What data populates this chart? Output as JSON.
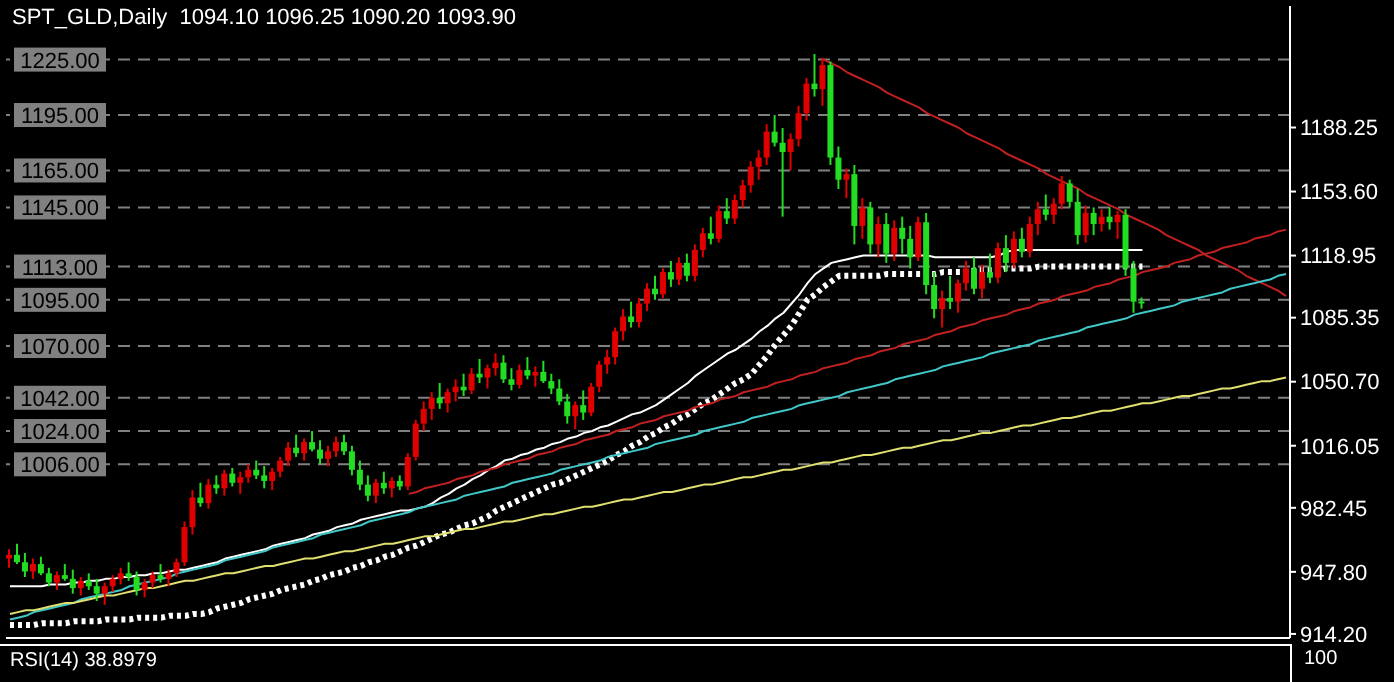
{
  "chart_data": {
    "type": "candlestick",
    "title": "SPT_GLD,Daily  1094.10 1096.25 1090.20 1093.90",
    "annotations": [
      "RSI(14) 38.8979",
      "100"
    ],
    "colors": [
      "#e00000",
      "#22dd22",
      "#22dd22",
      "#e00000",
      "#22dd22",
      "#22dd22",
      "#e00000",
      "#22dd22",
      "#22dd22",
      "#e00000",
      "#22dd22",
      "#22dd22",
      "#e00000",
      "#e00000",
      "#e00000",
      "#22dd22",
      "#22dd22",
      "#e00000",
      "#e00000",
      "#22dd22",
      "#e00000",
      "#e00000",
      "#e00000",
      "#e00000",
      "#22dd22",
      "#e00000",
      "#22dd22",
      "#e00000",
      "#22dd22",
      "#e00000",
      "#e00000",
      "#22dd22",
      "#22dd22",
      "#e00000",
      "#e00000",
      "#e00000",
      "#22dd22",
      "#e00000",
      "#22dd22",
      "#22dd22",
      "#e00000",
      "#e00000",
      "#22dd22",
      "#22dd22",
      "#22dd22",
      "#22dd22",
      "#e00000",
      "#22dd22",
      "#e00000",
      "#22dd22",
      "#e00000",
      "#e00000",
      "#e00000",
      "#e00000",
      "#22dd22",
      "#e00000",
      "#e00000",
      "#22dd22",
      "#e00000",
      "#22dd22",
      "#e00000",
      "#e00000",
      "#22dd22",
      "#22dd22",
      "#e00000",
      "#22dd22",
      "#e00000",
      "#22dd22",
      "#22dd22",
      "#22dd22",
      "#22dd22",
      "#e00000",
      "#22dd22",
      "#e00000",
      "#e00000",
      "#e00000",
      "#e00000",
      "#e00000",
      "#22dd22",
      "#e00000",
      "#e00000",
      "#22dd22",
      "#e00000",
      "#22dd22",
      "#e00000",
      "#22dd22",
      "#e00000",
      "#e00000",
      "#22dd22",
      "#e00000",
      "#22dd22",
      "#e00000",
      "#e00000",
      "#e00000",
      "#e00000",
      "#e00000",
      "#22dd22",
      "#22dd22",
      "#e00000",
      "#e00000",
      "#e00000",
      "#22dd22",
      "#e00000",
      "#22dd22",
      "#22dd22",
      "#e00000",
      "#22dd22",
      "#e00000",
      "#22dd22",
      "#e00000",
      "#22dd22",
      "#e00000",
      "#22dd22",
      "#22dd22",
      "#e00000",
      "#22dd22",
      "#22dd22",
      "#e00000",
      "#22dd22",
      "#e00000",
      "#e00000",
      "#22dd22",
      "#e00000",
      "#22dd22",
      "#e00000",
      "#22dd22",
      "#e00000",
      "#22dd22",
      "#e00000",
      "#e00000",
      "#22dd22",
      "#e00000",
      "#e00000",
      "#22dd22",
      "#22dd22",
      "#e00000",
      "#22dd22",
      "#e00000",
      "#22dd22",
      "#e00000",
      "#22dd22",
      "#22dd22",
      "#22dd22",
      null,
      null,
      null,
      null,
      null,
      null,
      null,
      null,
      null,
      null,
      null,
      null,
      null,
      null,
      null,
      null,
      null,
      null
    ],
    "categories": [
      null,
      null,
      null,
      null,
      null,
      null,
      null,
      null,
      null,
      null,
      null,
      null,
      null,
      null,
      null,
      null,
      null,
      null,
      null,
      null,
      null,
      null,
      null,
      null,
      null,
      null,
      null,
      null,
      null,
      null,
      null,
      null,
      null,
      null,
      null,
      null,
      null,
      null,
      null,
      null,
      null,
      null,
      null,
      null,
      null,
      null,
      null,
      null,
      null,
      null,
      null,
      null,
      null,
      null,
      null,
      null,
      null,
      null,
      null,
      null,
      null,
      null,
      null,
      null,
      null,
      null,
      null,
      null,
      null,
      null,
      null,
      null,
      null,
      null,
      null,
      null,
      null,
      null,
      null,
      null,
      null,
      null,
      null,
      null,
      null,
      null,
      null,
      null,
      null,
      null,
      null,
      null,
      null,
      null,
      null,
      null,
      null,
      null,
      null,
      null,
      null,
      null,
      null,
      null,
      null,
      null,
      null,
      null,
      null,
      null,
      null,
      null,
      null,
      null,
      null,
      null,
      null,
      null,
      null,
      null,
      null,
      null,
      null,
      null,
      null,
      null,
      null,
      null,
      null,
      null,
      null,
      null,
      null,
      null,
      null,
      null,
      null,
      null,
      null,
      null,
      null,
      null,
      null,
      null,
      null,
      null,
      null,
      null,
      null,
      null,
      null,
      null,
      null,
      null,
      null,
      null,
      null,
      null,
      null,
      null,
      null
    ],
    "ohlc": [
      [
        955,
        960,
        950,
        957
      ],
      [
        957,
        963,
        952,
        953
      ],
      [
        953,
        958,
        945,
        948
      ],
      [
        948,
        955,
        944,
        952
      ],
      [
        952,
        956,
        946,
        947
      ],
      [
        947,
        950,
        940,
        942
      ],
      [
        942,
        948,
        938,
        946
      ],
      [
        946,
        952,
        943,
        944
      ],
      [
        944,
        949,
        936,
        939
      ],
      [
        939,
        945,
        935,
        943
      ],
      [
        943,
        947,
        938,
        940
      ],
      [
        940,
        944,
        932,
        936
      ],
      [
        936,
        942,
        930,
        940
      ],
      [
        940,
        946,
        937,
        944
      ],
      [
        944,
        950,
        941,
        947
      ],
      [
        947,
        953,
        943,
        945
      ],
      [
        945,
        948,
        935,
        938
      ],
      [
        938,
        944,
        934,
        942
      ],
      [
        942,
        948,
        939,
        946
      ],
      [
        946,
        952,
        942,
        944
      ],
      [
        944,
        949,
        940,
        947
      ],
      [
        947,
        955,
        945,
        953
      ],
      [
        953,
        975,
        951,
        972
      ],
      [
        972,
        992,
        968,
        988
      ],
      [
        988,
        996,
        983,
        985
      ],
      [
        985,
        998,
        982,
        995
      ],
      [
        995,
        1000,
        990,
        993
      ],
      [
        993,
        1003,
        989,
        1001
      ],
      [
        1001,
        1004,
        994,
        996
      ],
      [
        996,
        1002,
        990,
        999
      ],
      [
        999,
        1006,
        996,
        1003
      ],
      [
        1003,
        1008,
        998,
        1000
      ],
      [
        1000,
        1005,
        993,
        997
      ],
      [
        997,
        1004,
        992,
        1002
      ],
      [
        1002,
        1010,
        999,
        1008
      ],
      [
        1008,
        1018,
        1005,
        1015
      ],
      [
        1015,
        1022,
        1010,
        1012
      ],
      [
        1012,
        1020,
        1008,
        1018
      ],
      [
        1018,
        1024,
        1013,
        1014
      ],
      [
        1014,
        1019,
        1006,
        1009
      ],
      [
        1009,
        1016,
        1005,
        1013
      ],
      [
        1013,
        1021,
        1010,
        1018
      ],
      [
        1018,
        1022,
        1011,
        1013
      ],
      [
        1013,
        1016,
        1000,
        1003
      ],
      [
        1003,
        1008,
        992,
        995
      ],
      [
        995,
        1000,
        986,
        989
      ],
      [
        989,
        998,
        985,
        996
      ],
      [
        996,
        1002,
        990,
        993
      ],
      [
        993,
        999,
        988,
        997
      ],
      [
        997,
        1000,
        992,
        994
      ],
      [
        994,
        1012,
        992,
        1010
      ],
      [
        1010,
        1030,
        1008,
        1028
      ],
      [
        1028,
        1040,
        1024,
        1036
      ],
      [
        1036,
        1045,
        1030,
        1042
      ],
      [
        1042,
        1050,
        1036,
        1039
      ],
      [
        1039,
        1047,
        1034,
        1045
      ],
      [
        1045,
        1052,
        1040,
        1048
      ],
      [
        1048,
        1055,
        1043,
        1046
      ],
      [
        1046,
        1058,
        1044,
        1055
      ],
      [
        1055,
        1063,
        1050,
        1053
      ],
      [
        1053,
        1060,
        1047,
        1058
      ],
      [
        1058,
        1066,
        1054,
        1061
      ],
      [
        1061,
        1065,
        1050,
        1052
      ],
      [
        1052,
        1058,
        1046,
        1049
      ],
      [
        1049,
        1060,
        1047,
        1057
      ],
      [
        1057,
        1064,
        1052,
        1054
      ],
      [
        1054,
        1059,
        1048,
        1056
      ],
      [
        1056,
        1062,
        1050,
        1051
      ],
      [
        1051,
        1055,
        1044,
        1047
      ],
      [
        1047,
        1052,
        1038,
        1040
      ],
      [
        1040,
        1044,
        1028,
        1032
      ],
      [
        1032,
        1040,
        1025,
        1038
      ],
      [
        1038,
        1046,
        1030,
        1034
      ],
      [
        1034,
        1050,
        1032,
        1048
      ],
      [
        1048,
        1062,
        1045,
        1060
      ],
      [
        1060,
        1068,
        1055,
        1064
      ],
      [
        1064,
        1080,
        1060,
        1078
      ],
      [
        1078,
        1090,
        1073,
        1086
      ],
      [
        1086,
        1094,
        1080,
        1083
      ],
      [
        1083,
        1096,
        1080,
        1093
      ],
      [
        1093,
        1104,
        1089,
        1101
      ],
      [
        1101,
        1108,
        1095,
        1098
      ],
      [
        1098,
        1112,
        1096,
        1110
      ],
      [
        1110,
        1116,
        1102,
        1106
      ],
      [
        1106,
        1118,
        1103,
        1115
      ],
      [
        1115,
        1120,
        1105,
        1108
      ],
      [
        1108,
        1125,
        1105,
        1122
      ],
      [
        1122,
        1134,
        1118,
        1131
      ],
      [
        1131,
        1140,
        1125,
        1128
      ],
      [
        1128,
        1146,
        1126,
        1143
      ],
      [
        1143,
        1150,
        1136,
        1139
      ],
      [
        1139,
        1152,
        1136,
        1149
      ],
      [
        1149,
        1160,
        1145,
        1157
      ],
      [
        1157,
        1170,
        1153,
        1167
      ],
      [
        1167,
        1176,
        1160,
        1172
      ],
      [
        1172,
        1190,
        1168,
        1186
      ],
      [
        1186,
        1195,
        1178,
        1180
      ],
      [
        1180,
        1188,
        1140,
        1175
      ],
      [
        1175,
        1185,
        1165,
        1182
      ],
      [
        1182,
        1200,
        1178,
        1196
      ],
      [
        1196,
        1215,
        1192,
        1212
      ],
      [
        1212,
        1228,
        1205,
        1209
      ],
      [
        1209,
        1226,
        1200,
        1222
      ],
      [
        1222,
        1224,
        1168,
        1172
      ],
      [
        1172,
        1178,
        1155,
        1160
      ],
      [
        1160,
        1166,
        1150,
        1163
      ],
      [
        1163,
        1168,
        1125,
        1135
      ],
      [
        1135,
        1150,
        1128,
        1145
      ],
      [
        1145,
        1148,
        1120,
        1125
      ],
      [
        1125,
        1140,
        1118,
        1136
      ],
      [
        1136,
        1142,
        1115,
        1120
      ],
      [
        1120,
        1138,
        1116,
        1134
      ],
      [
        1134,
        1140,
        1120,
        1128
      ],
      [
        1128,
        1135,
        1112,
        1118
      ],
      [
        1118,
        1140,
        1116,
        1137
      ],
      [
        1137,
        1142,
        1098,
        1103
      ],
      [
        1103,
        1110,
        1085,
        1090
      ],
      [
        1090,
        1100,
        1080,
        1096
      ],
      [
        1096,
        1108,
        1090,
        1094
      ],
      [
        1094,
        1106,
        1088,
        1104
      ],
      [
        1104,
        1116,
        1100,
        1112
      ],
      [
        1112,
        1118,
        1098,
        1101
      ],
      [
        1101,
        1114,
        1096,
        1110
      ],
      [
        1110,
        1120,
        1104,
        1107
      ],
      [
        1107,
        1126,
        1104,
        1123
      ],
      [
        1123,
        1130,
        1110,
        1115
      ],
      [
        1115,
        1132,
        1112,
        1128
      ],
      [
        1128,
        1134,
        1118,
        1121
      ],
      [
        1121,
        1140,
        1118,
        1136
      ],
      [
        1136,
        1148,
        1130,
        1144
      ],
      [
        1144,
        1152,
        1138,
        1141
      ],
      [
        1141,
        1150,
        1136,
        1147
      ],
      [
        1147,
        1162,
        1144,
        1158
      ],
      [
        1158,
        1160,
        1145,
        1148
      ],
      [
        1148,
        1155,
        1125,
        1130
      ],
      [
        1130,
        1146,
        1126,
        1142
      ],
      [
        1142,
        1145,
        1130,
        1136
      ],
      [
        1136,
        1144,
        1132,
        1140
      ],
      [
        1140,
        1145,
        1133,
        1137
      ],
      [
        1137,
        1143,
        1128,
        1141
      ],
      [
        1141,
        1144,
        1108,
        1112
      ],
      [
        1112,
        1116,
        1088,
        1094
      ],
      [
        1094.1,
        1096.25,
        1090.2,
        1093.9
      ],
      null,
      null,
      null,
      null,
      null,
      null,
      null,
      null,
      null,
      null,
      null,
      null,
      null,
      null,
      null,
      null,
      null,
      null
    ],
    "series": [
      {
        "type": "line",
        "color": "#ffffff",
        "line_style": "solid",
        "values": [
          940,
          940,
          940,
          940,
          940,
          941,
          941,
          941,
          942,
          942,
          943,
          943,
          944,
          944,
          945,
          945,
          946,
          946,
          947,
          947,
          948,
          949,
          949,
          950,
          951,
          952,
          953,
          955,
          956,
          957,
          958,
          959,
          960,
          962,
          963,
          964,
          965,
          966,
          968,
          969,
          970,
          972,
          973,
          974,
          976,
          977,
          978,
          979,
          980,
          981,
          981,
          982,
          983,
          985,
          988,
          990,
          993,
          995,
          998,
          1000,
          1003,
          1005,
          1008,
          1009,
          1011,
          1012,
          1014,
          1015,
          1017,
          1018,
          1020,
          1021,
          1023,
          1024,
          1026,
          1027,
          1029,
          1031,
          1033,
          1034,
          1036,
          1038,
          1041,
          1044,
          1047,
          1050,
          1054,
          1057,
          1060,
          1063,
          1066,
          1068,
          1071,
          1074,
          1078,
          1081,
          1085,
          1088,
          1093,
          1098,
          1104,
          1109,
          1112,
          1115,
          1116,
          1117,
          1118,
          1119,
          1119,
          1119,
          1119,
          1119,
          1119,
          1119,
          1119,
          1119,
          1118,
          1118,
          1118,
          1118,
          1118,
          1118,
          1118,
          1118,
          1119,
          1121,
          1122,
          1122,
          1122,
          1122,
          1122,
          1122,
          1122,
          1122,
          1122,
          1122,
          1122,
          1122,
          1122,
          1122,
          1122,
          1122,
          1122,
          null,
          null,
          null,
          null,
          null,
          null,
          null,
          null,
          null,
          null,
          null,
          null,
          null,
          null,
          null,
          null,
          null,
          null
        ]
      },
      {
        "type": "line",
        "color": "#ffffff",
        "line_style": "dotted",
        "values": [
          919,
          919,
          919,
          919,
          920,
          920,
          920,
          920,
          921,
          921,
          921,
          921,
          922,
          922,
          922,
          922,
          923,
          923,
          923,
          923,
          924,
          924,
          924,
          925,
          925,
          926,
          928,
          929,
          930,
          931,
          933,
          934,
          935,
          936,
          938,
          939,
          940,
          941,
          943,
          944,
          946,
          947,
          948,
          950,
          951,
          953,
          954,
          956,
          957,
          959,
          961,
          962,
          964,
          966,
          968,
          969,
          971,
          973,
          974,
          976,
          978,
          981,
          983,
          985,
          987,
          989,
          991,
          993,
          995,
          996,
          998,
          1000,
          1002,
          1004,
          1006,
          1008,
          1011,
          1013,
          1016,
          1018,
          1021,
          1023,
          1026,
          1028,
          1031,
          1033,
          1036,
          1039,
          1041,
          1044,
          1047,
          1050,
          1052,
          1055,
          1060,
          1065,
          1071,
          1076,
          1081,
          1088,
          1095,
          1098,
          1102,
          1105,
          1108,
          1108,
          1108,
          1108,
          1108,
          1108,
          1109,
          1109,
          1109,
          1109,
          1109,
          1109,
          1109,
          1110,
          1110,
          1110,
          1110,
          1111,
          1111,
          1111,
          1111,
          1112,
          1112,
          1112,
          1112,
          1113,
          1113,
          1113,
          1113,
          1113,
          1113,
          1113,
          1113,
          1113,
          1113,
          1113,
          1113,
          1113,
          1113,
          null,
          null,
          null,
          null,
          null,
          null,
          null,
          null,
          null,
          null,
          null,
          null,
          null,
          null,
          null,
          null,
          null,
          null
        ]
      },
      {
        "type": "line",
        "color": "#c02020",
        "line_style": "solid",
        "values": [
          null,
          null,
          null,
          null,
          null,
          null,
          null,
          null,
          null,
          null,
          null,
          null,
          null,
          null,
          null,
          null,
          null,
          null,
          null,
          null,
          null,
          null,
          null,
          null,
          null,
          null,
          null,
          null,
          null,
          null,
          null,
          null,
          null,
          null,
          null,
          null,
          null,
          null,
          null,
          null,
          null,
          null,
          null,
          null,
          null,
          null,
          null,
          null,
          null,
          null,
          null,
          null,
          null,
          null,
          null,
          null,
          null,
          null,
          null,
          null,
          null,
          null,
          null,
          null,
          null,
          null,
          null,
          null,
          null,
          null,
          null,
          null,
          null,
          null,
          null,
          null,
          null,
          null,
          null,
          null,
          null,
          null,
          null,
          null,
          null,
          null,
          null,
          null,
          null,
          null,
          null,
          null,
          null,
          null,
          null,
          null,
          null,
          null,
          null,
          null,
          null,
          null,
          1225,
          1223,
          1221,
          1218,
          1216,
          1214,
          1212,
          1210,
          1207,
          1205,
          1203,
          1201,
          1199,
          1196,
          1194,
          1192,
          1190,
          1188,
          1185,
          1183,
          1181,
          1179,
          1177,
          1174,
          1172,
          1170,
          1168,
          1166,
          1163,
          1161,
          1159,
          1157,
          1155,
          1152,
          1150,
          1148,
          1146,
          1144,
          1141,
          1139,
          1137,
          1135,
          1133,
          1130,
          1128,
          1126,
          1124,
          1122,
          1119,
          1117,
          1115,
          1113,
          1111,
          1108,
          1106,
          1104,
          1102,
          1100,
          1097
        ]
      },
      {
        "type": "line",
        "color": "#c02020",
        "line_style": "solid",
        "values": [
          null,
          null,
          null,
          null,
          null,
          null,
          null,
          null,
          null,
          null,
          null,
          null,
          null,
          null,
          null,
          null,
          null,
          null,
          null,
          null,
          null,
          null,
          null,
          null,
          null,
          null,
          null,
          null,
          null,
          null,
          null,
          null,
          null,
          null,
          null,
          null,
          null,
          null,
          null,
          null,
          null,
          null,
          null,
          null,
          null,
          null,
          null,
          null,
          null,
          null,
          990,
          991,
          993,
          994,
          995,
          996,
          998,
          999,
          1000,
          1002,
          1003,
          1004,
          1006,
          1007,
          1008,
          1009,
          1011,
          1012,
          1013,
          1015,
          1016,
          1017,
          1019,
          1020,
          1021,
          1022,
          1024,
          1025,
          1026,
          1028,
          1029,
          1030,
          1032,
          1033,
          1034,
          1035,
          1037,
          1038,
          1039,
          1041,
          1042,
          1043,
          1045,
          1046,
          1047,
          1048,
          1050,
          1051,
          1052,
          1054,
          1055,
          1056,
          1058,
          1059,
          1060,
          1061,
          1063,
          1064,
          1065,
          1067,
          1068,
          1069,
          1071,
          1072,
          1073,
          1074,
          1076,
          1077,
          1078,
          1080,
          1081,
          1082,
          1084,
          1085,
          1086,
          1087,
          1089,
          1090,
          1091,
          1093,
          1094,
          1095,
          1097,
          1098,
          1099,
          1100,
          1102,
          1103,
          1104,
          1106,
          1107,
          1108,
          1110,
          1111,
          1112,
          1113,
          1115,
          1116,
          1117,
          1119,
          1120,
          1121,
          1123,
          1124,
          1125,
          1126,
          1128,
          1129,
          1130,
          1132,
          1133
        ]
      },
      {
        "type": "line",
        "color": "#40c8c8",
        "line_style": "solid",
        "values": [
          922,
          923,
          924,
          926,
          927,
          928,
          929,
          930,
          931,
          933,
          934,
          935,
          936,
          937,
          938,
          940,
          941,
          942,
          943,
          944,
          945,
          947,
          948,
          949,
          950,
          951,
          952,
          954,
          955,
          956,
          957,
          958,
          959,
          961,
          962,
          963,
          964,
          965,
          966,
          968,
          969,
          970,
          971,
          972,
          973,
          975,
          976,
          977,
          978,
          979,
          980,
          982,
          983,
          984,
          985,
          986,
          987,
          989,
          990,
          991,
          992,
          993,
          994,
          996,
          997,
          998,
          999,
          1000,
          1001,
          1003,
          1004,
          1005,
          1006,
          1007,
          1008,
          1010,
          1011,
          1012,
          1013,
          1014,
          1015,
          1017,
          1018,
          1019,
          1020,
          1021,
          1022,
          1024,
          1025,
          1026,
          1027,
          1028,
          1029,
          1031,
          1032,
          1033,
          1034,
          1035,
          1036,
          1038,
          1039,
          1040,
          1041,
          1042,
          1043,
          1045,
          1046,
          1047,
          1048,
          1049,
          1050,
          1052,
          1053,
          1054,
          1055,
          1056,
          1057,
          1059,
          1060,
          1061,
          1062,
          1063,
          1064,
          1066,
          1067,
          1068,
          1069,
          1070,
          1071,
          1073,
          1074,
          1075,
          1076,
          1077,
          1078,
          1080,
          1081,
          1082,
          1083,
          1084,
          1085,
          1087,
          1088,
          1089,
          1090,
          1091,
          1092,
          1094,
          1095,
          1096,
          1097,
          1098,
          1099,
          1101,
          1102,
          1103,
          1104,
          1105,
          1106,
          1108,
          1109
        ]
      },
      {
        "type": "line",
        "color": "#e0e070",
        "line_style": "solid",
        "values": [
          925,
          926,
          927,
          927,
          928,
          929,
          930,
          931,
          931,
          932,
          933,
          934,
          935,
          935,
          936,
          937,
          938,
          939,
          939,
          940,
          941,
          942,
          943,
          943,
          944,
          945,
          946,
          947,
          947,
          948,
          949,
          950,
          951,
          951,
          952,
          953,
          954,
          955,
          955,
          956,
          957,
          958,
          959,
          959,
          960,
          961,
          962,
          963,
          963,
          964,
          965,
          966,
          967,
          967,
          968,
          969,
          970,
          971,
          971,
          972,
          973,
          974,
          975,
          975,
          976,
          977,
          978,
          979,
          979,
          980,
          981,
          982,
          983,
          983,
          984,
          985,
          986,
          987,
          987,
          988,
          989,
          990,
          991,
          991,
          992,
          993,
          994,
          995,
          995,
          996,
          997,
          998,
          999,
          999,
          1000,
          1001,
          1002,
          1003,
          1003,
          1004,
          1005,
          1006,
          1007,
          1007,
          1008,
          1009,
          1010,
          1011,
          1011,
          1012,
          1013,
          1014,
          1015,
          1015,
          1016,
          1017,
          1018,
          1019,
          1019,
          1020,
          1021,
          1022,
          1023,
          1023,
          1024,
          1025,
          1026,
          1027,
          1027,
          1028,
          1029,
          1030,
          1031,
          1031,
          1032,
          1033,
          1034,
          1035,
          1035,
          1036,
          1037,
          1038,
          1039,
          1039,
          1040,
          1041,
          1042,
          1043,
          1043,
          1044,
          1045,
          1046,
          1047,
          1047,
          1048,
          1049,
          1050,
          1051,
          1051,
          1052,
          1053
        ]
      }
    ],
    "ylim": [
      912,
      1254
    ],
    "yticks": [
      {
        "value": 914.2,
        "label": "914.20"
      },
      {
        "value": 947.8,
        "label": "947.80"
      },
      {
        "value": 982.45,
        "label": "982.45"
      },
      {
        "value": 1016.05,
        "label": "1016.05"
      },
      {
        "value": 1050.7,
        "label": "1050.70"
      },
      {
        "value": 1085.35,
        "label": "1085.35"
      },
      {
        "value": 1118.95,
        "label": "1118.95"
      },
      {
        "value": 1153.6,
        "label": "1153.60"
      },
      {
        "value": 1188.25,
        "label": "1188.25"
      }
    ],
    "tick_labels": "y",
    "ref_lines": [
      {
        "axis": "y",
        "value": 1225,
        "label": "1225.00",
        "color": "#808080",
        "line_style": "dashed"
      },
      {
        "axis": "y",
        "value": 1195,
        "label": "1195.00",
        "color": "#808080",
        "line_style": "dashed"
      },
      {
        "axis": "y",
        "value": 1165,
        "label": "1165.00",
        "color": "#808080",
        "line_style": "dashed"
      },
      {
        "axis": "y",
        "value": 1145,
        "label": "1145.00",
        "color": "#808080",
        "line_style": "dashed"
      },
      {
        "axis": "y",
        "value": 1113,
        "label": "1113.00",
        "color": "#808080",
        "line_style": "dashed"
      },
      {
        "axis": "y",
        "value": 1095,
        "label": "1095.00",
        "color": "#808080",
        "line_style": "dashed"
      },
      {
        "axis": "y",
        "value": 1070,
        "label": "1070.00",
        "color": "#808080",
        "line_style": "dashed"
      },
      {
        "axis": "y",
        "value": 1042,
        "label": "1042.00",
        "color": "#808080",
        "line_style": "dashed"
      },
      {
        "axis": "y",
        "value": 1024,
        "label": "1024.00",
        "color": "#808080",
        "line_style": "dashed"
      },
      {
        "axis": "y",
        "value": 1006,
        "label": "1006.00",
        "color": "#808080",
        "line_style": "dashed"
      }
    ]
  }
}
